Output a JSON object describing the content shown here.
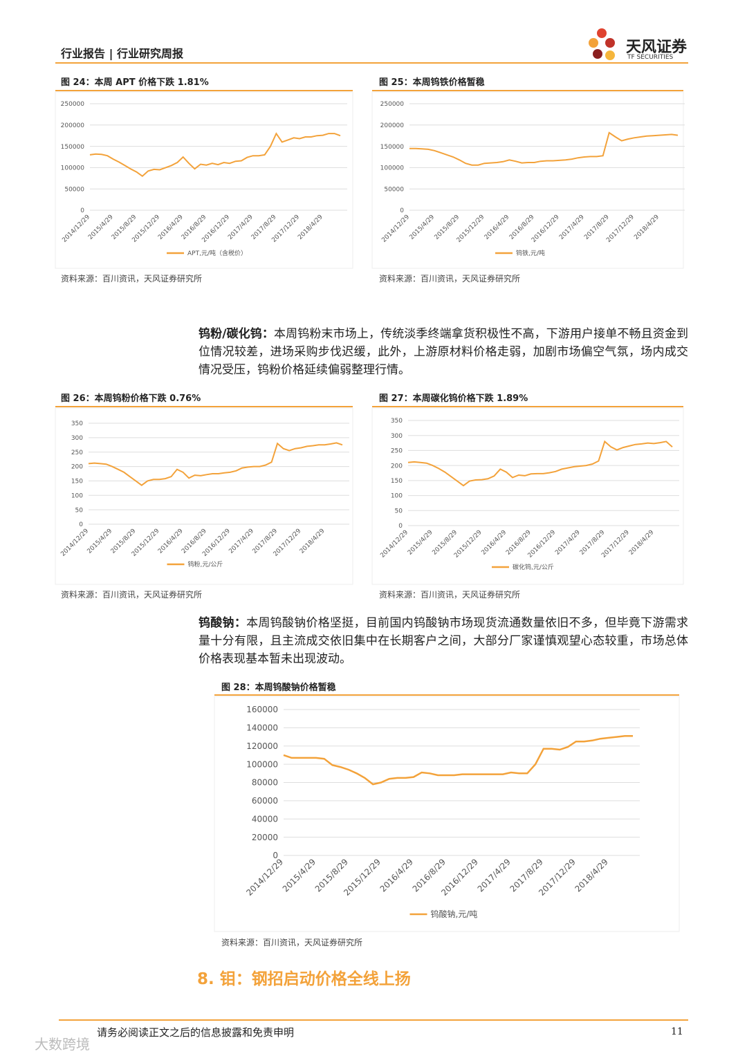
{
  "header": {
    "title": "行业报告 | 行业研究周报",
    "logo_text": "天风证券",
    "logo_sub": "TF SECURITIES"
  },
  "figures": [
    {
      "caption": "图 24：本周 APT 价格下跌 1.81%",
      "source": "资料来源：百川资讯，天风证券研究所",
      "chart": {
        "type": "line",
        "categories": [
          "2014/12/29",
          null,
          null,
          null,
          "2015/4/29",
          null,
          null,
          null,
          "2015/8/29",
          null,
          null,
          null,
          "2015/12/29",
          null,
          null,
          null,
          "2016/4/29",
          null,
          null,
          null,
          "2016/8/29",
          null,
          null,
          null,
          "2016/12/29",
          null,
          null,
          null,
          "2017/4/29",
          null,
          null,
          null,
          "2017/8/29",
          null,
          null,
          null,
          "2017/12/29",
          null,
          null,
          null,
          "2018/4/29",
          null,
          null,
          null
        ],
        "series": [
          {
            "name": "APT,元/吨（含税价）",
            "color": "#f3a23a",
            "values": [
              130000,
              132000,
              131000,
              128000,
              120000,
              113000,
              105000,
              97000,
              90000,
              80000,
              92000,
              96000,
              95000,
              100000,
              105000,
              112000,
              125000,
              110000,
              97000,
              108000,
              106000,
              110000,
              107000,
              112000,
              110000,
              115000,
              116000,
              124000,
              128000,
              128000,
              130000,
              150000,
              180000,
              160000,
              165000,
              170000,
              168000,
              172000,
              172000,
              175000,
              176000,
              180000,
              180000,
              175000
            ]
          }
        ],
        "ylim": [
          0,
          250000
        ],
        "yticks": [
          0,
          50000,
          100000,
          150000,
          200000,
          250000
        ],
        "grid": true
      }
    },
    {
      "caption": "图 25：本周钨铁价格暂稳",
      "source": "资料来源：百川资讯，天风证券研究所",
      "chart": {
        "type": "line",
        "categories": [
          "2014/12/29",
          null,
          null,
          null,
          "2015/4/29",
          null,
          null,
          null,
          "2015/8/29",
          null,
          null,
          null,
          "2015/12/29",
          null,
          null,
          null,
          "2016/4/29",
          null,
          null,
          null,
          "2016/8/29",
          null,
          null,
          null,
          "2016/12/29",
          null,
          null,
          null,
          "2017/4/29",
          null,
          null,
          null,
          "2017/8/29",
          null,
          null,
          null,
          "2017/12/29",
          null,
          null,
          null,
          "2018/4/29",
          null,
          null,
          null
        ],
        "series": [
          {
            "name": "钨铁,元/吨",
            "color": "#f3a23a",
            "values": [
              145000,
              145000,
              144000,
              143000,
              140000,
              135000,
              130000,
              125000,
              118000,
              110000,
              106000,
              106000,
              110000,
              111000,
              112000,
              114000,
              118000,
              115000,
              111000,
              112000,
              112000,
              115000,
              116000,
              116000,
              117000,
              118000,
              120000,
              123000,
              125000,
              126000,
              126000,
              128000,
              182000,
              172000,
              163000,
              167000,
              170000,
              172000,
              174000,
              175000,
              176000,
              177000,
              178000,
              176000
            ]
          }
        ],
        "ylim": [
          0,
          250000
        ],
        "yticks": [
          0,
          50000,
          100000,
          150000,
          200000,
          250000
        ],
        "grid": true
      }
    },
    {
      "caption": "图 26：本周钨粉价格下跌 0.76%",
      "source": "资料来源：百川资讯，天风证券研究所",
      "chart": {
        "type": "line",
        "categories": [
          "2014/12/29",
          null,
          null,
          null,
          "2015/4/29",
          null,
          null,
          null,
          "2015/8/29",
          null,
          null,
          null,
          "2015/12/29",
          null,
          null,
          null,
          "2016/4/29",
          null,
          null,
          null,
          "2016/8/29",
          null,
          null,
          null,
          "2016/12/29",
          null,
          null,
          null,
          "2017/4/29",
          null,
          null,
          null,
          "2017/8/29",
          null,
          null,
          null,
          "2017/12/29",
          null,
          null,
          null,
          "2018/4/29",
          null,
          null,
          null
        ],
        "series": [
          {
            "name": "钨粉,元/公斤",
            "color": "#f3a23a",
            "values": [
              210,
              212,
              210,
              208,
              200,
              190,
              180,
              165,
              150,
              135,
              150,
              155,
              155,
              158,
              165,
              190,
              180,
              160,
              170,
              168,
              172,
              175,
              175,
              178,
              180,
              185,
              195,
              198,
              200,
              200,
              205,
              215,
              280,
              262,
              255,
              262,
              265,
              270,
              272,
              275,
              275,
              278,
              282,
              275
            ]
          }
        ],
        "ylim": [
          0,
          350
        ],
        "yticks": [
          0,
          50,
          100,
          150,
          200,
          250,
          300,
          350
        ],
        "grid": true
      }
    },
    {
      "caption": "图 27：本周碳化钨价格下跌 1.89%",
      "source": "资料来源：百川资讯，天风证券研究所",
      "chart": {
        "type": "line",
        "categories": [
          "2014/12/29",
          null,
          null,
          null,
          "2015/4/29",
          null,
          null,
          null,
          "2015/8/29",
          null,
          null,
          null,
          "2015/12/29",
          null,
          null,
          null,
          "2016/4/29",
          null,
          null,
          null,
          "2016/8/29",
          null,
          null,
          null,
          "2016/12/29",
          null,
          null,
          null,
          "2017/4/29",
          null,
          null,
          null,
          "2017/8/29",
          null,
          null,
          null,
          "2017/12/29",
          null,
          null,
          null,
          "2018/4/29",
          null,
          null,
          null
        ],
        "series": [
          {
            "name": "碳化钨,元/公斤",
            "color": "#f3a23a",
            "values": [
              210,
              212,
              210,
              208,
              200,
              190,
              178,
              163,
              148,
              133,
              148,
              152,
              153,
              156,
              165,
              188,
              178,
              160,
              168,
              166,
              172,
              173,
              173,
              176,
              180,
              188,
              192,
              196,
              198,
              200,
              205,
              215,
              280,
              262,
              252,
              260,
              265,
              270,
              272,
              275,
              273,
              276,
              280,
              262
            ]
          }
        ],
        "ylim": [
          0,
          350
        ],
        "yticks": [
          0,
          50,
          100,
          150,
          200,
          250,
          300,
          350
        ],
        "grid": true
      }
    },
    {
      "caption": "图 28：本周钨酸钠价格暂稳",
      "source": "资料来源：百川资讯，天风证券研究所",
      "chart": {
        "type": "line",
        "categories": [
          "2014/12/29",
          null,
          null,
          null,
          "2015/4/29",
          null,
          null,
          null,
          "2015/8/29",
          null,
          null,
          null,
          "2015/12/29",
          null,
          null,
          null,
          "2016/4/29",
          null,
          null,
          null,
          "2016/8/29",
          null,
          null,
          null,
          "2016/12/29",
          null,
          null,
          null,
          "2017/4/29",
          null,
          null,
          null,
          "2017/8/29",
          null,
          null,
          null,
          "2017/12/29",
          null,
          null,
          null,
          "2018/4/29",
          null,
          null,
          null
        ],
        "series": [
          {
            "name": "钨酸钠,元/吨",
            "color": "#f3a23a",
            "values": [
              110000,
              107000,
              107000,
              107000,
              107000,
              106000,
              99000,
              97000,
              94000,
              90000,
              85000,
              78000,
              80000,
              84000,
              85000,
              85000,
              86000,
              91000,
              90000,
              88000,
              88000,
              88000,
              89000,
              89000,
              89000,
              89000,
              89000,
              89000,
              91000,
              90000,
              90000,
              100000,
              117000,
              117000,
              116000,
              119000,
              125000,
              125000,
              126000,
              128000,
              129000,
              130000,
              131000,
              131000
            ]
          }
        ],
        "ylim": [
          0,
          160000
        ],
        "yticks": [
          0,
          20000,
          40000,
          60000,
          80000,
          100000,
          120000,
          140000,
          160000
        ],
        "grid": true
      }
    }
  ],
  "paragraphs": [
    {
      "lead": "钨粉/碳化钨：",
      "text": "本周钨粉末市场上，传统淡季终端拿货积极性不高，下游用户接单不畅且资金到位情况较差，进场采购步伐迟缓，此外，上游原材料价格走弱，加剧市场偏空气氛，场内成交情况受压，钨粉价格延续偏弱整理行情。"
    },
    {
      "lead": "钨酸钠：",
      "text": "本周钨酸钠价格坚挺，目前国内钨酸钠市场现货流通数量依旧不多，但毕竟下游需求量十分有限，且主流成交依旧集中在长期客户之间，大部分厂家谨慎观望心态较重，市场总体价格表现基本暂未出现波动。"
    }
  ],
  "section_heading": "8. 钼：钢招启动价格全线上扬",
  "footer": {
    "disclaimer": "请务必阅读正文之后的信息披露和免责申明",
    "page": "11"
  },
  "watermark": "大数跨境"
}
